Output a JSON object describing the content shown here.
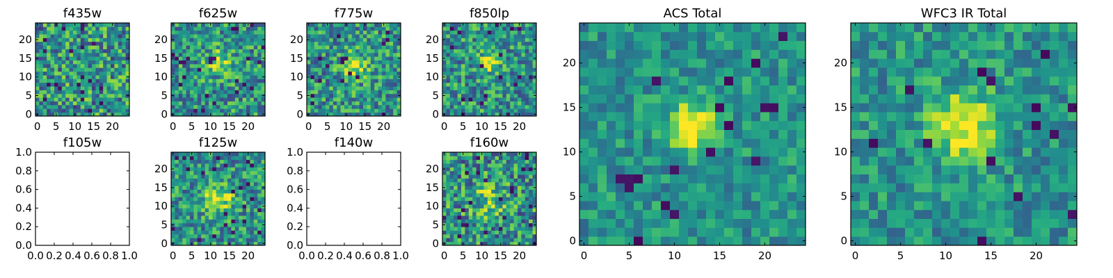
{
  "chart_data": [
    {
      "type": "heatmap",
      "title": "f435w",
      "has_data": true,
      "image_size": [
        25,
        25
      ],
      "colormap": "viridis",
      "xlim": [
        -0.5,
        24.5
      ],
      "ylim": [
        -0.5,
        24.5
      ],
      "xticks": [
        0,
        5,
        10,
        15,
        20
      ],
      "yticks": [
        0,
        5,
        10,
        15,
        20
      ],
      "xtick_labels": [
        "0",
        "5",
        "10",
        "15",
        "20"
      ],
      "ytick_labels": [
        "0",
        "5",
        "10",
        "15",
        "20"
      ],
      "source_peak": null,
      "seed": 11,
      "noise": 0.34,
      "dark_pixel_fraction": 0.035
    },
    {
      "type": "heatmap",
      "title": "f625w",
      "has_data": true,
      "image_size": [
        25,
        25
      ],
      "colormap": "viridis",
      "xlim": [
        -0.5,
        24.5
      ],
      "ylim": [
        -0.5,
        24.5
      ],
      "xticks": [
        0,
        5,
        10,
        15,
        20
      ],
      "yticks": [
        0,
        5,
        10,
        15,
        20
      ],
      "xtick_labels": [
        "0",
        "5",
        "10",
        "15",
        "20"
      ],
      "ytick_labels": [
        "0",
        "5",
        "10",
        "15",
        "20"
      ],
      "source_peak": [
        12,
        14
      ],
      "source_width": 2.2,
      "source_amplitude": 0.42,
      "seed": 23,
      "noise": 0.3,
      "dark_pixel_fraction": 0.03
    },
    {
      "type": "heatmap",
      "title": "f775w",
      "has_data": true,
      "image_size": [
        25,
        25
      ],
      "colormap": "viridis",
      "xlim": [
        -0.5,
        24.5
      ],
      "ylim": [
        -0.5,
        24.5
      ],
      "xticks": [
        0,
        5,
        10,
        15,
        20
      ],
      "yticks": [
        0,
        5,
        10,
        15,
        20
      ],
      "xtick_labels": [
        "0",
        "5",
        "10",
        "15",
        "20"
      ],
      "ytick_labels": [
        "0",
        "5",
        "10",
        "15",
        "20"
      ],
      "source_peak": [
        12,
        13
      ],
      "source_width": 2.3,
      "source_amplitude": 0.42,
      "seed": 37,
      "noise": 0.3,
      "dark_pixel_fraction": 0.03
    },
    {
      "type": "heatmap",
      "title": "f850lp",
      "has_data": true,
      "image_size": [
        25,
        25
      ],
      "colormap": "viridis",
      "xlim": [
        -0.5,
        24.5
      ],
      "ylim": [
        -0.5,
        24.5
      ],
      "xticks": [
        0,
        5,
        10,
        15,
        20
      ],
      "yticks": [
        0,
        5,
        10,
        15,
        20
      ],
      "xtick_labels": [
        "0",
        "5",
        "10",
        "15",
        "20"
      ],
      "ytick_labels": [
        "0",
        "5",
        "10",
        "15",
        "20"
      ],
      "source_peak": [
        12,
        14
      ],
      "source_width": 2.0,
      "source_amplitude": 0.4,
      "seed": 53,
      "noise": 0.3,
      "dark_pixel_fraction": 0.04
    },
    {
      "type": "heatmap",
      "title": "f105w",
      "has_data": false,
      "xlim": [
        0,
        1
      ],
      "ylim": [
        0,
        1
      ],
      "xticks": [
        0,
        0.2,
        0.4,
        0.6,
        0.8,
        1.0
      ],
      "yticks": [
        0,
        0.2,
        0.4,
        0.6,
        0.8,
        1.0
      ],
      "xtick_labels": [
        "0.0",
        "0.2",
        "0.4",
        "0.6",
        "0.8",
        "1.0"
      ],
      "ytick_labels": [
        "0.0",
        "0.2",
        "0.4",
        "0.6",
        "0.8",
        "1.0"
      ]
    },
    {
      "type": "heatmap",
      "title": "f125w",
      "has_data": true,
      "image_size": [
        25,
        25
      ],
      "colormap": "viridis",
      "xlim": [
        -0.5,
        24.5
      ],
      "ylim": [
        -0.5,
        24.5
      ],
      "xticks": [
        0,
        5,
        10,
        15,
        20
      ],
      "yticks": [
        0,
        5,
        10,
        15,
        20
      ],
      "xtick_labels": [
        "0",
        "5",
        "10",
        "15",
        "20"
      ],
      "ytick_labels": [
        "0",
        "5",
        "10",
        "15",
        "20"
      ],
      "source_peak": [
        12,
        12
      ],
      "source_width": 2.5,
      "source_amplitude": 0.45,
      "seed": 71,
      "noise": 0.28,
      "dark_pixel_fraction": 0.035
    },
    {
      "type": "heatmap",
      "title": "f140w",
      "has_data": false,
      "xlim": [
        0,
        1
      ],
      "ylim": [
        0,
        1
      ],
      "xticks": [
        0,
        0.2,
        0.4,
        0.6,
        0.8,
        1.0
      ],
      "yticks": [
        0,
        0.2,
        0.4,
        0.6,
        0.8,
        1.0
      ],
      "xtick_labels": [
        "0.0",
        "0.2",
        "0.4",
        "0.6",
        "0.8",
        "1.0"
      ],
      "ytick_labels": [
        "0.0",
        "0.2",
        "0.4",
        "0.6",
        "0.8",
        "1.0"
      ]
    },
    {
      "type": "heatmap",
      "title": "f160w",
      "has_data": true,
      "image_size": [
        25,
        25
      ],
      "colormap": "viridis",
      "xlim": [
        -0.5,
        24.5
      ],
      "ylim": [
        -0.5,
        24.5
      ],
      "xticks": [
        0,
        5,
        10,
        15,
        20
      ],
      "yticks": [
        0,
        5,
        10,
        15,
        20
      ],
      "xtick_labels": [
        "0",
        "5",
        "10",
        "15",
        "20"
      ],
      "ytick_labels": [
        "0",
        "5",
        "10",
        "15",
        "20"
      ],
      "source_peak": [
        12,
        12
      ],
      "source_width": 3.0,
      "source_amplitude": 0.25,
      "seed": 89,
      "noise": 0.34,
      "dark_pixel_fraction": 0.04
    },
    {
      "type": "heatmap",
      "title": "ACS Total",
      "has_data": true,
      "image_size": [
        25,
        25
      ],
      "colormap": "viridis",
      "xlim": [
        -0.5,
        24.5
      ],
      "ylim": [
        -0.5,
        24.5
      ],
      "xticks": [
        0,
        5,
        10,
        15,
        20
      ],
      "yticks": [
        0,
        5,
        10,
        15,
        20
      ],
      "xtick_labels": [
        "0",
        "5",
        "10",
        "15",
        "20"
      ],
      "ytick_labels": [
        "0",
        "5",
        "10",
        "15",
        "20"
      ],
      "source_peak": [
        12,
        13
      ],
      "source_width": 1.8,
      "source_amplitude": 0.6,
      "seed": 101,
      "noise": 0.18,
      "dark_pixel_fraction": 0.03
    },
    {
      "type": "heatmap",
      "title": "WFC3 IR Total",
      "has_data": true,
      "image_size": [
        25,
        25
      ],
      "colormap": "viridis",
      "xlim": [
        -0.5,
        24.5
      ],
      "ylim": [
        -0.5,
        24.5
      ],
      "xticks": [
        0,
        5,
        10,
        15,
        20
      ],
      "yticks": [
        0,
        5,
        10,
        15,
        20
      ],
      "xtick_labels": [
        "0",
        "5",
        "10",
        "15",
        "20"
      ],
      "ytick_labels": [
        "0",
        "5",
        "10",
        "15",
        "20"
      ],
      "source_peak": [
        12,
        13
      ],
      "source_width": 2.6,
      "source_amplitude": 0.5,
      "seed": 131,
      "noise": 0.2,
      "dark_pixel_fraction": 0.03
    }
  ]
}
